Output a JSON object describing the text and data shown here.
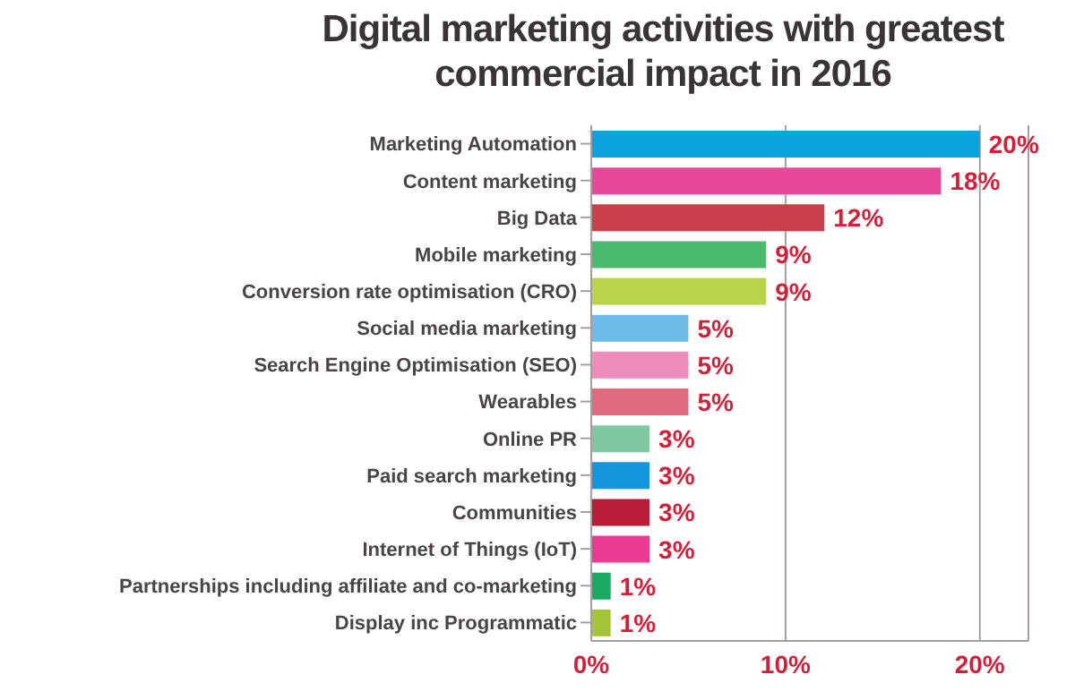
{
  "chart_data": {
    "type": "bar",
    "orientation": "horizontal",
    "title": "Digital marketing activities with greatest commercial impact in 2016",
    "categories": [
      "Marketing Automation",
      "Content marketing",
      "Big Data",
      "Mobile marketing",
      "Conversion rate optimisation (CRO)",
      "Social media marketing",
      "Search Engine Optimisation (SEO)",
      "Wearables",
      "Online PR",
      "Paid search marketing",
      "Communities",
      "Internet of Things (IoT)",
      "Partnerships including affiliate and co-marketing",
      "Display inc Programmatic"
    ],
    "values": [
      20,
      18,
      12,
      9,
      9,
      5,
      5,
      5,
      3,
      3,
      3,
      3,
      1,
      1
    ],
    "value_labels": [
      "20%",
      "18%",
      "12%",
      "9%",
      "9%",
      "5%",
      "5%",
      "5%",
      "3%",
      "3%",
      "3%",
      "3%",
      "1%",
      "1%"
    ],
    "colors": [
      "#0aa3dc",
      "#e8479a",
      "#c8404a",
      "#4cba6e",
      "#b9d44a",
      "#6fbbe8",
      "#ee8cbb",
      "#e06a7e",
      "#7fc9a0",
      "#1596dc",
      "#b81c36",
      "#ea3a92",
      "#1ba860",
      "#a4c43c"
    ],
    "xlim": [
      0,
      22.5
    ],
    "xticks": [
      {
        "value": 0,
        "label": "0%"
      },
      {
        "value": 10,
        "label": "10%"
      },
      {
        "value": 20,
        "label": "20%"
      }
    ],
    "grid": "x"
  }
}
